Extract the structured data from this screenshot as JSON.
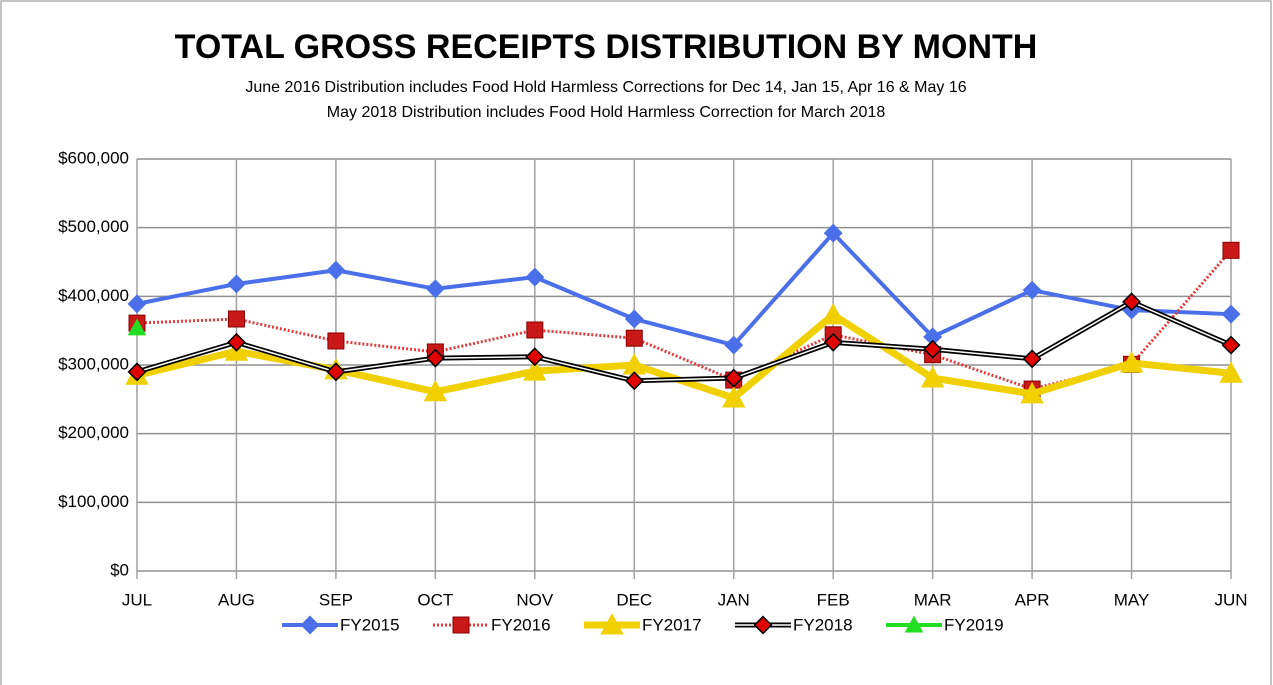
{
  "chart_data": {
    "type": "line",
    "title": "TOTAL GROSS RECEIPTS DISTRIBUTION BY MONTH",
    "subtitle": [
      "June 2016 Distribution includes Food Hold Harmless Corrections for Dec 14, Jan 15, Apr 16 & May 16",
      "May 2018 Distribution includes  Food Hold Harmless Correction for  March 2018"
    ],
    "categories": [
      "JUL",
      "AUG",
      "SEP",
      "OCT",
      "NOV",
      "DEC",
      "JAN",
      "FEB",
      "MAR",
      "APR",
      "MAY",
      "JUN"
    ],
    "series": [
      {
        "name": "FY2015",
        "color": "#4a6fe8",
        "marker": "diamond",
        "values": [
          389000,
          418000,
          438000,
          411000,
          428000,
          367000,
          329000,
          492000,
          341000,
          409000,
          380000,
          374000
        ]
      },
      {
        "name": "FY2016",
        "color": "#e8393a",
        "marker": "square",
        "values": [
          361000,
          367000,
          335000,
          319000,
          351000,
          339000,
          278000,
          344000,
          315000,
          265000,
          301000,
          467000
        ]
      },
      {
        "name": "FY2017",
        "color": "#f0d000",
        "marker": "triangle",
        "values": [
          285000,
          320000,
          293000,
          261000,
          291000,
          300000,
          252000,
          373000,
          281000,
          258000,
          303000,
          288000
        ]
      },
      {
        "name": "FY2018",
        "color": "#000000",
        "marker": "diamond",
        "values": [
          290000,
          333000,
          290000,
          310000,
          312000,
          277000,
          281000,
          333000,
          323000,
          309000,
          392000,
          329000
        ]
      },
      {
        "name": "FY2019",
        "color": "#22dd22",
        "marker": "triangle",
        "values": [
          354000,
          null,
          null,
          null,
          null,
          null,
          null,
          null,
          null,
          null,
          null,
          null
        ]
      }
    ],
    "ylim": [
      0,
      600000
    ],
    "yticks": [
      {
        "value": 0,
        "label": "$0"
      },
      {
        "value": 100000,
        "label": "$100,000"
      },
      {
        "value": 200000,
        "label": "$200,000"
      },
      {
        "value": 300000,
        "label": "$300,000"
      },
      {
        "value": 400000,
        "label": "$400,000"
      },
      {
        "value": 500000,
        "label": "$500,000"
      },
      {
        "value": 600000,
        "label": "$600,000"
      }
    ],
    "grid": true,
    "legend": "bottom"
  }
}
